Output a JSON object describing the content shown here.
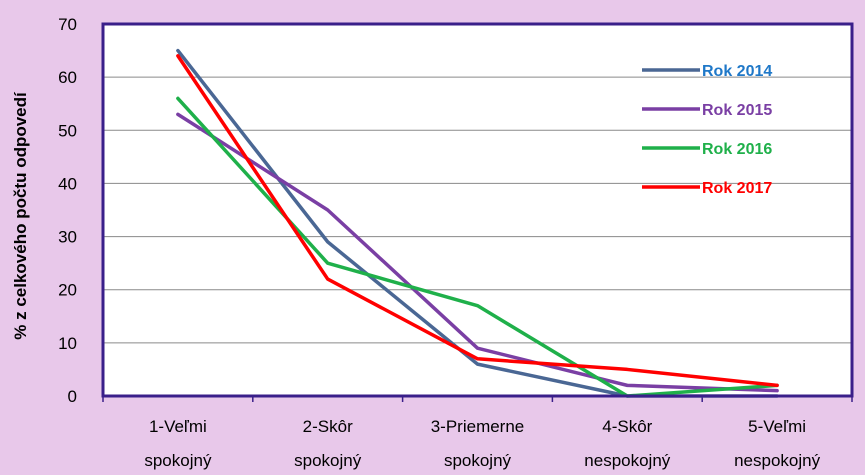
{
  "chart_data": {
    "type": "line",
    "ylabel": "% z celkového počtu odpovedí",
    "ylim": [
      0,
      70
    ],
    "yticks": [
      0,
      10,
      20,
      30,
      40,
      50,
      60,
      70
    ],
    "categories": [
      [
        "1-Veľmi",
        "spokojný"
      ],
      [
        "2-Skôr",
        "spokojný"
      ],
      [
        "3-Priemerne",
        "spokojný"
      ],
      [
        "4-Skôr",
        "nespokojný"
      ],
      [
        "5-Veľmi",
        "nespokojný"
      ]
    ],
    "grid": true,
    "legend_position": "top-right",
    "series": [
      {
        "name": "Rok 2014",
        "color": "#4a6794",
        "label_color": "#1f78c8",
        "values": [
          65,
          29,
          6,
          0,
          0
        ]
      },
      {
        "name": "Rok 2015",
        "color": "#7a3fa4",
        "label_color": "#7a3fa4",
        "values": [
          53,
          35,
          9,
          2,
          1
        ]
      },
      {
        "name": "Rok 2016",
        "color": "#1fb04a",
        "label_color": "#1fb04a",
        "values": [
          56,
          25,
          17,
          0,
          2
        ]
      },
      {
        "name": "Rok 2017",
        "color": "#ff0000",
        "label_color": "#ff0000",
        "values": [
          64,
          22,
          7,
          5,
          2
        ]
      }
    ]
  }
}
